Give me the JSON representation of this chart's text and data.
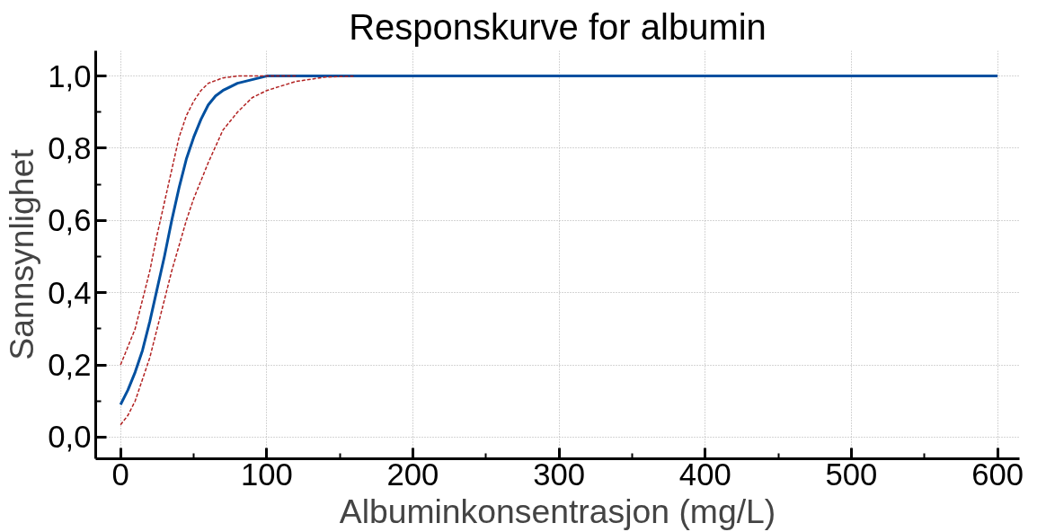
{
  "chart_data": {
    "type": "line",
    "title": "Responskurve for albumin",
    "xlabel": "Albuminkonsentrasjon (mg/L)",
    "ylabel": "Sannsynlighet",
    "series": [
      {
        "color": "#0050a0",
        "line_style": "solid",
        "x": [
          0,
          5,
          10,
          15,
          20,
          25,
          30,
          35,
          40,
          45,
          50,
          55,
          60,
          65,
          70,
          80,
          90,
          100,
          120,
          150,
          600
        ],
        "values": [
          0.09,
          0.13,
          0.18,
          0.24,
          0.32,
          0.41,
          0.5,
          0.6,
          0.69,
          0.77,
          0.83,
          0.88,
          0.92,
          0.945,
          0.96,
          0.98,
          0.99,
          1.0,
          1.0,
          1.0,
          1.0
        ]
      },
      {
        "color": "#b22222",
        "line_style": "dashed",
        "x": [
          0,
          5,
          10,
          15,
          20,
          25,
          30,
          35,
          40,
          45,
          50,
          55,
          60,
          70,
          80,
          120
        ],
        "values": [
          0.2,
          0.25,
          0.3,
          0.38,
          0.46,
          0.56,
          0.65,
          0.74,
          0.83,
          0.89,
          0.93,
          0.96,
          0.98,
          0.995,
          1.0,
          1.0
        ]
      },
      {
        "color": "#b22222",
        "line_style": "dashed",
        "x": [
          0,
          5,
          10,
          15,
          20,
          25,
          30,
          35,
          40,
          45,
          50,
          55,
          60,
          70,
          80,
          90,
          100,
          120,
          140,
          160
        ],
        "values": [
          0.034,
          0.06,
          0.1,
          0.16,
          0.22,
          0.3,
          0.38,
          0.46,
          0.53,
          0.6,
          0.66,
          0.71,
          0.76,
          0.85,
          0.9,
          0.94,
          0.96,
          0.985,
          0.997,
          1.0
        ]
      }
    ],
    "xlim": [
      -17,
      615
    ],
    "ylim": [
      -0.06,
      1.07
    ],
    "xticks": [
      0,
      100,
      200,
      300,
      400,
      500,
      600
    ],
    "yticks": [
      {
        "value": 0,
        "label": "0,0"
      },
      {
        "value": 0.2,
        "label": "0,2"
      },
      {
        "value": 0.4,
        "label": "0,4"
      },
      {
        "value": 0.6,
        "label": "0,6"
      },
      {
        "value": 0.8,
        "label": "0,8"
      },
      {
        "value": 1.0,
        "label": "1,0"
      }
    ],
    "grid": true
  }
}
